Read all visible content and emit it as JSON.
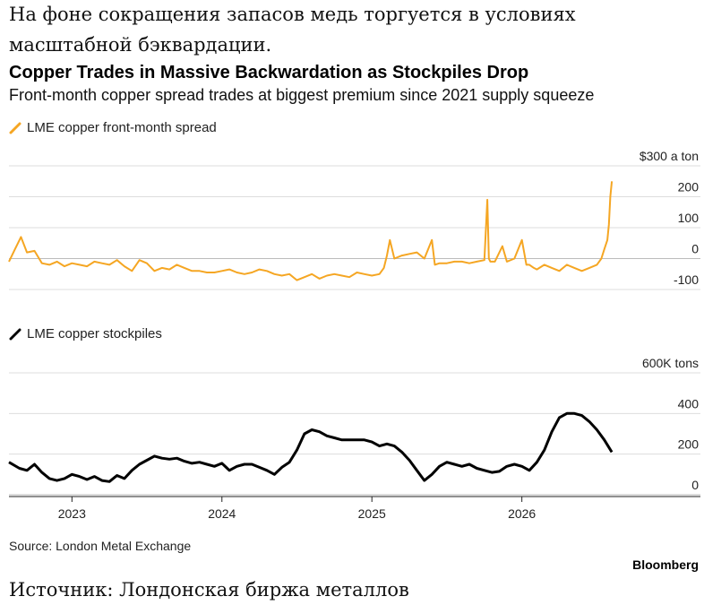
{
  "header": {
    "ru_line1": "На фоне сокращения запасов медь торгуется в условиях",
    "ru_line2": "масштабной бэквардации.",
    "title": "Copper Trades in Massive Backwardation as Stockpiles Drop",
    "subtitle": "Front-month copper spread trades at biggest premium since 2021 supply squeeze"
  },
  "footer": {
    "source": "Source: London Metal Exchange",
    "brand": "Bloomberg",
    "ru_source": "Источник: Лондонская биржа металлов"
  },
  "chart_data": [
    {
      "type": "line",
      "series": [
        {
          "name": "LME copper front-month spread",
          "color": "#f5a623",
          "x": [
            2022.58,
            2022.62,
            2022.66,
            2022.7,
            2022.75,
            2022.8,
            2022.85,
            2022.9,
            2022.95,
            2023.0,
            2023.05,
            2023.1,
            2023.15,
            2023.2,
            2023.25,
            2023.3,
            2023.35,
            2023.4,
            2023.45,
            2023.5,
            2023.55,
            2023.6,
            2023.65,
            2023.7,
            2023.75,
            2023.8,
            2023.85,
            2023.9,
            2023.95,
            2024.0,
            2024.05,
            2024.1,
            2024.15,
            2024.2,
            2024.25,
            2024.3,
            2024.35,
            2024.4,
            2024.45,
            2024.5,
            2024.55,
            2024.6,
            2024.65,
            2024.7,
            2024.75,
            2024.8,
            2024.85,
            2024.9,
            2024.95,
            2025.0,
            2025.05,
            2025.08,
            2025.1,
            2025.12,
            2025.15,
            2025.2,
            2025.25,
            2025.3,
            2025.35,
            2025.4,
            2025.42,
            2025.45,
            2025.5,
            2025.55,
            2025.6,
            2025.65,
            2025.7,
            2025.75,
            2025.77,
            2025.78,
            2025.79,
            2025.82,
            2025.87,
            2025.9,
            2025.95,
            2026.0,
            2026.03,
            2026.05,
            2026.08,
            2026.1,
            2026.15,
            2026.2,
            2026.25,
            2026.3,
            2026.35,
            2026.4,
            2026.45,
            2026.5,
            2026.53,
            2026.55,
            2026.57,
            2026.58,
            2026.59,
            2026.6
          ],
          "values": [
            -10,
            30,
            70,
            20,
            25,
            -15,
            -20,
            -10,
            -25,
            -15,
            -20,
            -25,
            -10,
            -15,
            -20,
            -5,
            -25,
            -40,
            -5,
            -15,
            -40,
            -30,
            -35,
            -20,
            -30,
            -40,
            -40,
            -45,
            -45,
            -40,
            -35,
            -45,
            -50,
            -45,
            -35,
            -40,
            -50,
            -55,
            -50,
            -70,
            -60,
            -50,
            -65,
            -55,
            -50,
            -55,
            -60,
            -45,
            -50,
            -55,
            -50,
            -30,
            10,
            60,
            0,
            10,
            15,
            20,
            0,
            60,
            -20,
            -15,
            -15,
            -10,
            -10,
            -15,
            -10,
            -5,
            190,
            0,
            -10,
            -10,
            40,
            -10,
            0,
            60,
            -20,
            -20,
            -30,
            -35,
            -20,
            -30,
            -40,
            -20,
            -30,
            -40,
            -30,
            -20,
            0,
            30,
            60,
            110,
            200,
            250
          ]
        }
      ],
      "ylim": [
        -100,
        300
      ],
      "y_ticks": [
        "$300 a ton",
        "200",
        "100",
        "0",
        "-100"
      ],
      "grid": true
    },
    {
      "type": "line",
      "series": [
        {
          "name": "LME copper stockpiles",
          "color": "#000000",
          "x": [
            2022.58,
            2022.65,
            2022.7,
            2022.75,
            2022.8,
            2022.85,
            2022.9,
            2022.95,
            2023.0,
            2023.05,
            2023.1,
            2023.15,
            2023.2,
            2023.25,
            2023.3,
            2023.35,
            2023.4,
            2023.45,
            2023.5,
            2023.55,
            2023.6,
            2023.65,
            2023.7,
            2023.75,
            2023.8,
            2023.85,
            2023.9,
            2023.95,
            2024.0,
            2024.05,
            2024.1,
            2024.15,
            2024.2,
            2024.25,
            2024.3,
            2024.35,
            2024.4,
            2024.45,
            2024.5,
            2024.55,
            2024.6,
            2024.65,
            2024.7,
            2024.75,
            2024.8,
            2024.85,
            2024.9,
            2024.95,
            2025.0,
            2025.05,
            2025.1,
            2025.15,
            2025.2,
            2025.25,
            2025.3,
            2025.35,
            2025.4,
            2025.45,
            2025.5,
            2025.55,
            2025.6,
            2025.65,
            2025.7,
            2025.75,
            2025.8,
            2025.85,
            2025.9,
            2025.95,
            2026.0,
            2026.05,
            2026.1,
            2026.15,
            2026.2,
            2026.25,
            2026.3,
            2026.35,
            2026.4,
            2026.45,
            2026.5,
            2026.55,
            2026.6
          ],
          "values": [
            160,
            130,
            120,
            150,
            110,
            80,
            70,
            80,
            100,
            90,
            75,
            90,
            70,
            65,
            95,
            80,
            120,
            150,
            170,
            190,
            180,
            175,
            180,
            165,
            155,
            160,
            150,
            140,
            155,
            120,
            140,
            150,
            150,
            135,
            120,
            100,
            135,
            160,
            220,
            300,
            320,
            310,
            290,
            280,
            270,
            270,
            270,
            270,
            260,
            240,
            250,
            240,
            210,
            170,
            120,
            70,
            100,
            140,
            160,
            150,
            140,
            150,
            130,
            120,
            110,
            115,
            140,
            150,
            140,
            120,
            160,
            220,
            310,
            380,
            400,
            400,
            390,
            360,
            320,
            270,
            210
          ]
        }
      ],
      "ylim": [
        0,
        600
      ],
      "y_ticks": [
        "600K tons",
        "400",
        "200",
        "0"
      ],
      "grid": true
    }
  ],
  "x_axis": {
    "range": [
      2022.58,
      2026.88
    ],
    "tick_labels": [
      "2023",
      "2024",
      "2025",
      "2026"
    ],
    "tick_values": [
      2023,
      2024,
      2025,
      2026
    ]
  }
}
